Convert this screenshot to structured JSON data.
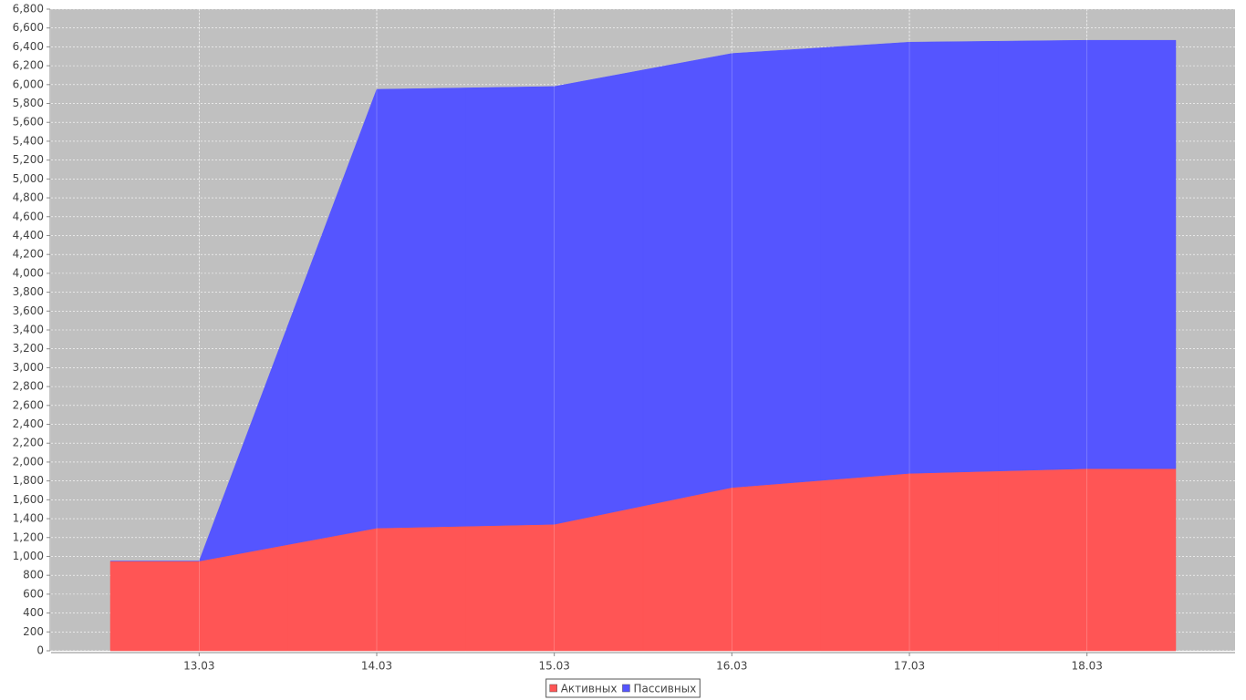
{
  "chart_data": {
    "type": "stacked-area",
    "categories": [
      "13.03",
      "14.03",
      "15.03",
      "16.03",
      "17.03",
      "18.03"
    ],
    "series": [
      {
        "name": "Активных",
        "color": "#ff5555",
        "values": [
          950,
          1300,
          1340,
          1730,
          1880,
          1930
        ]
      },
      {
        "name": "Пассивных",
        "color": "#5555ff",
        "values": [
          0,
          4650,
          4640,
          4600,
          4570,
          4540
        ]
      }
    ],
    "ylim": [
      0,
      6800
    ],
    "yticks": [
      0,
      200,
      400,
      600,
      800,
      {
        "value": 1000,
        "label": "1,000"
      },
      {
        "value": 1200,
        "label": "1,200"
      },
      {
        "value": 1400,
        "label": "1,400"
      },
      {
        "value": 1600,
        "label": "1,600"
      },
      {
        "value": 1800,
        "label": "1,800"
      },
      {
        "value": 2000,
        "label": "2,000"
      },
      {
        "value": 2200,
        "label": "2,200"
      },
      {
        "value": 2400,
        "label": "2,400"
      },
      {
        "value": 2600,
        "label": "2,600"
      },
      {
        "value": 2800,
        "label": "2,800"
      },
      {
        "value": 3000,
        "label": "3,000"
      },
      {
        "value": 3200,
        "label": "3,200"
      },
      {
        "value": 3400,
        "label": "3,400"
      },
      {
        "value": 3600,
        "label": "3,600"
      },
      {
        "value": 3800,
        "label": "3,800"
      },
      {
        "value": 4000,
        "label": "4,000"
      },
      {
        "value": 4200,
        "label": "4,200"
      },
      {
        "value": 4400,
        "label": "4,400"
      },
      {
        "value": 4600,
        "label": "4,600"
      },
      {
        "value": 4800,
        "label": "4,800"
      },
      {
        "value": 5000,
        "label": "5,000"
      },
      {
        "value": 5200,
        "label": "5,200"
      },
      {
        "value": 5400,
        "label": "5,400"
      },
      {
        "value": 5600,
        "label": "5,600"
      },
      {
        "value": 5800,
        "label": "5,800"
      },
      {
        "value": 6000,
        "label": "6,000"
      },
      {
        "value": 6200,
        "label": "6,200"
      },
      {
        "value": 6400,
        "label": "6,400"
      },
      {
        "value": 6600,
        "label": "6,600"
      },
      {
        "value": 6800,
        "label": "6,800"
      }
    ],
    "grid": true,
    "legend": "bottom"
  }
}
